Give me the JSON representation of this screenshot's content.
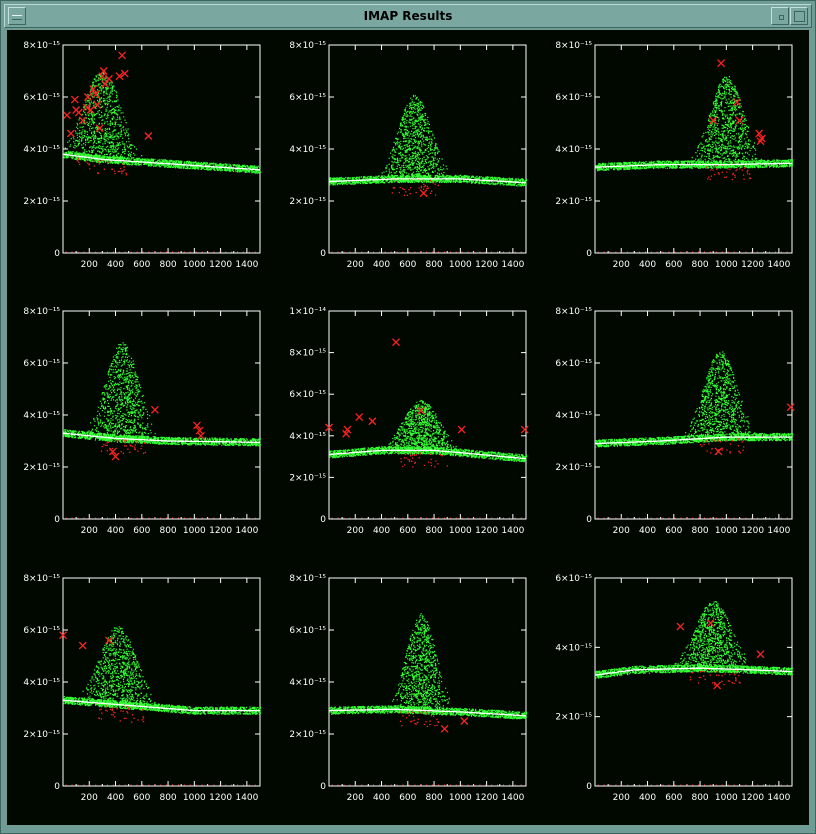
{
  "window": {
    "title": "IMAP Results"
  },
  "colors": {
    "background": "#000800",
    "data": "#33ff33",
    "trend": "#ffffff",
    "outlier": "#ff2222",
    "axes": "#ffffff"
  },
  "chart_data": [
    {
      "type": "scatter",
      "xlim": [
        0,
        1500
      ],
      "ylim": [
        0,
        8e-15
      ],
      "xticks": [
        200,
        400,
        600,
        800,
        1000,
        1200,
        1400
      ],
      "yticks": [
        0,
        2e-15,
        4e-15,
        6e-15,
        8e-15
      ],
      "ytick_labels": [
        "0",
        "2×10⁻¹⁵",
        "4×10⁻¹⁵",
        "6×10⁻¹⁵",
        "8×10⁻¹⁵"
      ],
      "baseline": [
        [
          0,
          3.8e-15
        ],
        [
          300,
          3.6e-15
        ],
        [
          600,
          3.5e-15
        ],
        [
          900,
          3.4e-15
        ],
        [
          1200,
          3.3e-15
        ],
        [
          1500,
          3.2e-15
        ]
      ],
      "peaks": [
        {
          "center": 300,
          "width": 200,
          "height": 3.5e-15
        }
      ],
      "outliers": [
        [
          30,
          5.3e-15
        ],
        [
          60,
          4.6e-15
        ],
        [
          90,
          5.9e-15
        ],
        [
          100,
          5.5e-15
        ],
        [
          120,
          5.4e-15
        ],
        [
          150,
          5.1e-15
        ],
        [
          180,
          5.6e-15
        ],
        [
          190,
          6e-15
        ],
        [
          210,
          5.5e-15
        ],
        [
          230,
          6.3e-15
        ],
        [
          250,
          6.1e-15
        ],
        [
          260,
          5.7e-15
        ],
        [
          280,
          4.8e-15
        ],
        [
          300,
          6.8e-15
        ],
        [
          310,
          7e-15
        ],
        [
          320,
          6.5e-15
        ],
        [
          350,
          6.7e-15
        ],
        [
          430,
          6.8e-15
        ],
        [
          450,
          7.6e-15
        ],
        [
          470,
          6.9e-15
        ],
        [
          650,
          4.5e-15
        ]
      ]
    },
    {
      "type": "scatter",
      "xlim": [
        0,
        1500
      ],
      "ylim": [
        0,
        8e-15
      ],
      "xticks": [
        200,
        400,
        600,
        800,
        1000,
        1200,
        1400
      ],
      "yticks": [
        0,
        2e-15,
        4e-15,
        6e-15,
        8e-15
      ],
      "ytick_labels": [
        "0",
        "2×10⁻¹⁵",
        "4×10⁻¹⁵",
        "6×10⁻¹⁵",
        "8×10⁻¹⁵"
      ],
      "baseline": [
        [
          0,
          2.75e-15
        ],
        [
          500,
          2.85e-15
        ],
        [
          1000,
          2.85e-15
        ],
        [
          1500,
          2.7e-15
        ]
      ],
      "peaks": [
        {
          "center": 650,
          "width": 180,
          "height": 3.3e-15
        }
      ],
      "outliers": [
        [
          720,
          2.3e-15
        ]
      ]
    },
    {
      "type": "scatter",
      "xlim": [
        0,
        1500
      ],
      "ylim": [
        0,
        8e-15
      ],
      "xticks": [
        200,
        400,
        600,
        800,
        1000,
        1200,
        1400
      ],
      "yticks": [
        0,
        2e-15,
        4e-15,
        6e-15,
        8e-15
      ],
      "ytick_labels": [
        "0",
        "2×10⁻¹⁵",
        "4×10⁻¹⁵",
        "6×10⁻¹⁵",
        "8×10⁻¹⁵"
      ],
      "baseline": [
        [
          0,
          3.3e-15
        ],
        [
          500,
          3.4e-15
        ],
        [
          1000,
          3.4e-15
        ],
        [
          1500,
          3.45e-15
        ]
      ],
      "peaks": [
        {
          "center": 1000,
          "width": 180,
          "height": 3.5e-15
        }
      ],
      "outliers": [
        [
          900,
          5.1e-15
        ],
        [
          960,
          7.3e-15
        ],
        [
          1080,
          5.8e-15
        ],
        [
          1100,
          5.1e-15
        ],
        [
          1250,
          4.6e-15
        ],
        [
          1270,
          4.4e-15
        ],
        [
          1260,
          4.3e-15
        ]
      ]
    },
    {
      "type": "scatter",
      "xlim": [
        0,
        1500
      ],
      "ylim": [
        0,
        8e-15
      ],
      "xticks": [
        200,
        400,
        600,
        800,
        1000,
        1200,
        1400
      ],
      "yticks": [
        0,
        2e-15,
        4e-15,
        6e-15,
        8e-15
      ],
      "ytick_labels": [
        "0",
        "2×10⁻¹⁵",
        "4×10⁻¹⁵",
        "6×10⁻¹⁵",
        "8×10⁻¹⁵"
      ],
      "baseline": [
        [
          0,
          3.3e-15
        ],
        [
          400,
          3.1e-15
        ],
        [
          800,
          3e-15
        ],
        [
          1500,
          2.95e-15
        ]
      ],
      "peaks": [
        {
          "center": 450,
          "width": 180,
          "height": 3.8e-15
        }
      ],
      "outliers": [
        [
          380,
          2.6e-15
        ],
        [
          400,
          2.4e-15
        ],
        [
          700,
          4.2e-15
        ],
        [
          1020,
          3.6e-15
        ],
        [
          1040,
          3.4e-15
        ],
        [
          1050,
          3.2e-15
        ]
      ]
    },
    {
      "type": "scatter",
      "xlim": [
        0,
        1500
      ],
      "ylim": [
        0,
        1e-14
      ],
      "xticks": [
        200,
        400,
        600,
        800,
        1000,
        1200,
        1400
      ],
      "yticks": [
        0,
        2e-15,
        4e-15,
        6e-15,
        8e-15,
        1e-14
      ],
      "ytick_labels": [
        "0",
        "2×10⁻¹⁵",
        "4×10⁻¹⁵",
        "6×10⁻¹⁵",
        "8×10⁻¹⁵",
        "1×10⁻¹⁴"
      ],
      "baseline": [
        [
          0,
          3.1e-15
        ],
        [
          400,
          3.3e-15
        ],
        [
          800,
          3.3e-15
        ],
        [
          1500,
          2.9e-15
        ]
      ],
      "peaks": [
        {
          "center": 700,
          "width": 200,
          "height": 2.5e-15
        }
      ],
      "outliers": [
        [
          0,
          4.4e-15
        ],
        [
          130,
          4.1e-15
        ],
        [
          140,
          4.3e-15
        ],
        [
          230,
          4.9e-15
        ],
        [
          330,
          4.7e-15
        ],
        [
          510,
          8.5e-15
        ],
        [
          1010,
          4.3e-15
        ],
        [
          1490,
          4.3e-15
        ],
        [
          700,
          5.2e-15
        ]
      ]
    },
    {
      "type": "scatter",
      "xlim": [
        0,
        1500
      ],
      "ylim": [
        0,
        8e-15
      ],
      "xticks": [
        200,
        400,
        600,
        800,
        1000,
        1200,
        1400
      ],
      "yticks": [
        0,
        2e-15,
        4e-15,
        6e-15,
        8e-15
      ],
      "ytick_labels": [
        "0",
        "2×10⁻¹⁵",
        "4×10⁻¹⁵",
        "6×10⁻¹⁵",
        "8×10⁻¹⁵"
      ],
      "baseline": [
        [
          0,
          2.9e-15
        ],
        [
          500,
          3e-15
        ],
        [
          1000,
          3.15e-15
        ],
        [
          1500,
          3.15e-15
        ]
      ],
      "peaks": [
        {
          "center": 950,
          "width": 180,
          "height": 3.4e-15
        }
      ],
      "outliers": [
        [
          940,
          2.6e-15
        ],
        [
          1490,
          4.3e-15
        ]
      ]
    },
    {
      "type": "scatter",
      "xlim": [
        0,
        1500
      ],
      "ylim": [
        0,
        8e-15
      ],
      "xticks": [
        200,
        400,
        600,
        800,
        1000,
        1200,
        1400
      ],
      "yticks": [
        0,
        2e-15,
        4e-15,
        6e-15,
        8e-15
      ],
      "ytick_labels": [
        "0",
        "2×10⁻¹⁵",
        "4×10⁻¹⁵",
        "6×10⁻¹⁵",
        "8×10⁻¹⁵"
      ],
      "baseline": [
        [
          0,
          3.3e-15
        ],
        [
          500,
          3.1e-15
        ],
        [
          1000,
          2.9e-15
        ],
        [
          1500,
          2.9e-15
        ]
      ],
      "peaks": [
        {
          "center": 420,
          "width": 200,
          "height": 3.1e-15
        }
      ],
      "outliers": [
        [
          0,
          5.8e-15
        ],
        [
          150,
          5.4e-15
        ],
        [
          350,
          5.6e-15
        ]
      ]
    },
    {
      "type": "scatter",
      "xlim": [
        0,
        1500
      ],
      "ylim": [
        0,
        8e-15
      ],
      "xticks": [
        200,
        400,
        600,
        800,
        1000,
        1200,
        1400
      ],
      "yticks": [
        0,
        2e-15,
        4e-15,
        6e-15,
        8e-15
      ],
      "ytick_labels": [
        "0",
        "2×10⁻¹⁵",
        "4×10⁻¹⁵",
        "6×10⁻¹⁵",
        "8×10⁻¹⁵"
      ],
      "baseline": [
        [
          0,
          2.9e-15
        ],
        [
          500,
          2.95e-15
        ],
        [
          1000,
          2.85e-15
        ],
        [
          1500,
          2.7e-15
        ]
      ],
      "peaks": [
        {
          "center": 700,
          "width": 160,
          "height": 3.8e-15
        }
      ],
      "outliers": [
        [
          880,
          2.2e-15
        ],
        [
          1030,
          2.5e-15
        ]
      ]
    },
    {
      "type": "scatter",
      "xlim": [
        0,
        1500
      ],
      "ylim": [
        0,
        6e-15
      ],
      "xticks": [
        200,
        400,
        600,
        800,
        1000,
        1200,
        1400
      ],
      "yticks": [
        0,
        2e-15,
        4e-15,
        6e-15
      ],
      "ytick_labels": [
        "0",
        "2×10⁻¹⁵",
        "4×10⁻¹⁵",
        "6×10⁻¹⁵"
      ],
      "baseline": [
        [
          0,
          3.2e-15
        ],
        [
          300,
          3.35e-15
        ],
        [
          800,
          3.4e-15
        ],
        [
          1200,
          3.35e-15
        ],
        [
          1500,
          3.3e-15
        ]
      ],
      "peaks": [
        {
          "center": 900,
          "width": 200,
          "height": 2e-15
        }
      ],
      "outliers": [
        [
          650,
          4.6e-15
        ],
        [
          880,
          4.7e-15
        ],
        [
          930,
          2.9e-15
        ],
        [
          1260,
          3.8e-15
        ]
      ]
    }
  ]
}
